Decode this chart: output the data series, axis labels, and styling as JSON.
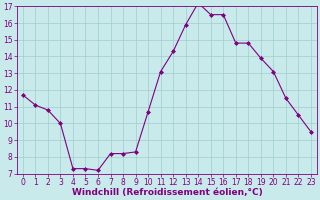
{
  "x": [
    0,
    1,
    2,
    3,
    4,
    5,
    6,
    7,
    8,
    9,
    10,
    11,
    12,
    13,
    14,
    15,
    16,
    17,
    18,
    19,
    20,
    21,
    22,
    23
  ],
  "y": [
    11.7,
    11.1,
    10.8,
    10.0,
    7.3,
    7.3,
    7.2,
    8.2,
    8.2,
    8.3,
    10.7,
    13.1,
    14.3,
    15.9,
    17.2,
    16.5,
    16.5,
    14.8,
    14.8,
    13.9,
    13.1,
    11.5,
    10.5,
    9.5
  ],
  "line_color": "#800080",
  "marker": "D",
  "marker_size": 2,
  "bg_color": "#c8eaea",
  "grid_color": "#a0cccc",
  "xlabel": "Windchill (Refroidissement éolien,°C)",
  "xlabel_fontsize": 6.5,
  "ylim": [
    7,
    17
  ],
  "xlim": [
    -0.5,
    23.5
  ],
  "yticks": [
    7,
    8,
    9,
    10,
    11,
    12,
    13,
    14,
    15,
    16,
    17
  ],
  "xticks": [
    0,
    1,
    2,
    3,
    4,
    5,
    6,
    7,
    8,
    9,
    10,
    11,
    12,
    13,
    14,
    15,
    16,
    17,
    18,
    19,
    20,
    21,
    22,
    23
  ],
  "tick_fontsize": 5.5,
  "tick_color": "#800080",
  "label_color": "#800080",
  "spine_color": "#800080"
}
